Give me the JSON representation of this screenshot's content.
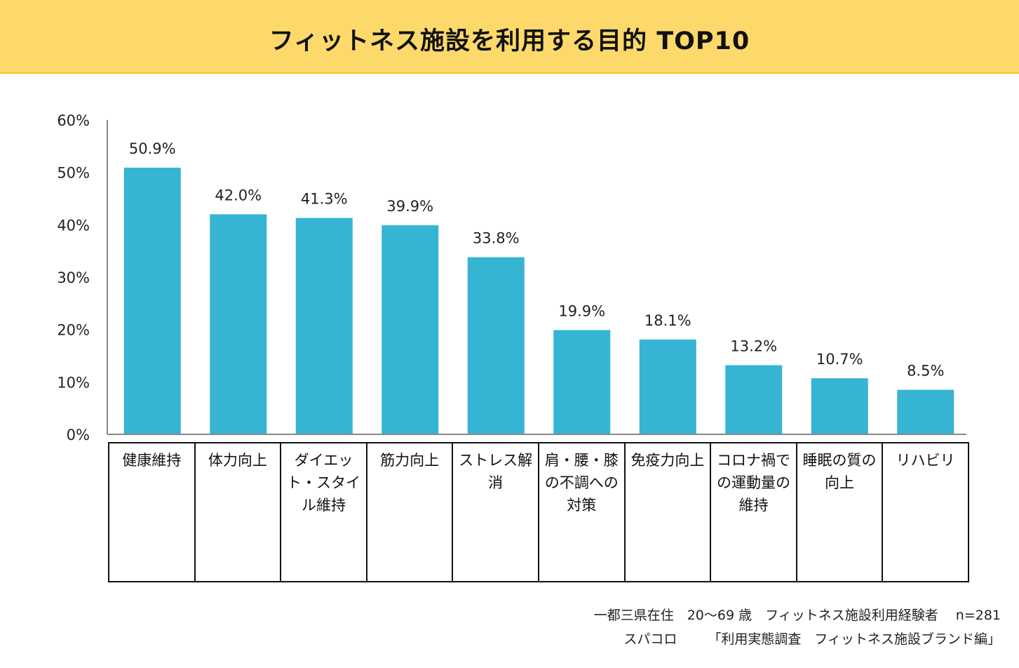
{
  "title": "フィットネス施設を利用する目的 TOP10",
  "colors": {
    "title_bg": "#fdd96b",
    "bar": "#36b4d3",
    "axis": "#888888"
  },
  "chart_data": {
    "type": "bar",
    "title": "フィットネス施設を利用する目的 TOP10",
    "categories": [
      "健康維持",
      "体力向上",
      "ダイエット・スタイル維持",
      "筋力向上",
      "ストレス解消",
      "肩・腰・膝の不調への対策",
      "免疫力向上",
      "コロナ禍での運動量の維持",
      "睡眠の質の向上",
      "リハビリ"
    ],
    "values": [
      50.9,
      42.0,
      41.3,
      39.9,
      33.8,
      19.9,
      18.1,
      13.2,
      10.7,
      8.5
    ],
    "value_labels": [
      "50.9%",
      "42.0%",
      "41.3%",
      "39.9%",
      "33.8%",
      "19.9%",
      "18.1%",
      "13.2%",
      "10.7%",
      "8.5%"
    ],
    "ylim": [
      0,
      60
    ],
    "yticks": [
      0,
      10,
      20,
      30,
      40,
      50,
      60
    ],
    "ytick_labels": [
      "0%",
      "10%",
      "20%",
      "30%",
      "40%",
      "50%",
      "60%"
    ],
    "xlabel": "",
    "ylabel": "",
    "grid": false
  },
  "footer": {
    "line1": "一都三県在住　20～69 歳　フィットネス施設利用経験者　 n=281",
    "line2": "スパコロ　　 「利用実態調査　フィットネス施設ブランド編」"
  }
}
